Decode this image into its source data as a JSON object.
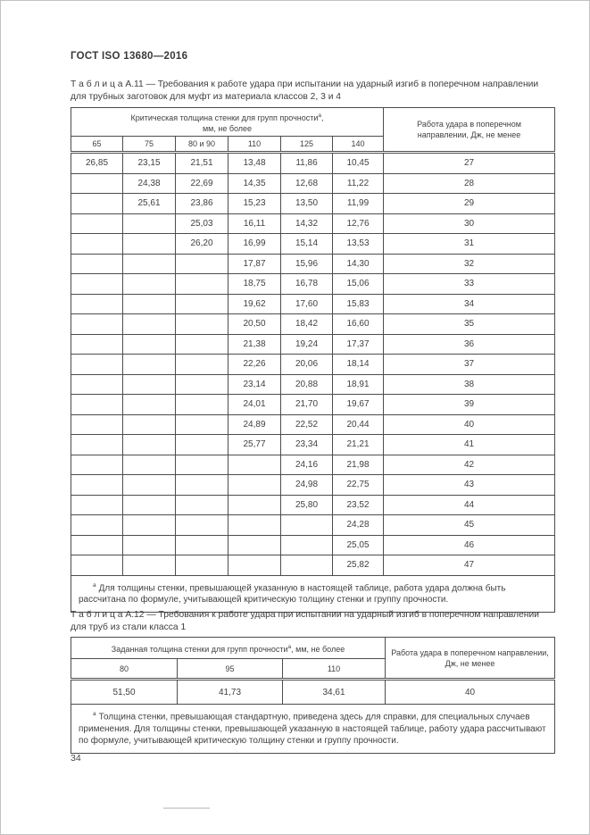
{
  "page": {
    "title": "ГОСТ ISO 13680—2016",
    "number": "34"
  },
  "table_a11": {
    "caption_label": "Т а б л и ц а  А.11",
    "caption_text": "— Требования к работе удара при испытании на ударный изгиб в поперечном направлении для трубных заготовок для муфт из материала классов 2, 3 и 4",
    "header": {
      "group_line1": "Критическая толщина стенки для групп прочности",
      "footnote_ref": "а",
      "group_line1_tail": ",",
      "group_line2": "мм, не более",
      "columns": [
        "65",
        "75",
        "80 и 90",
        "110",
        "125",
        "140"
      ],
      "work_column": "Работа удара в поперечном направлении, Дж, не менее"
    },
    "rows": [
      [
        "26,85",
        "23,15",
        "21,51",
        "13,48",
        "11,86",
        "10,45",
        "27"
      ],
      [
        "",
        "24,38",
        "22,69",
        "14,35",
        "12,68",
        "11,22",
        "28"
      ],
      [
        "",
        "25,61",
        "23,86",
        "15,23",
        "13,50",
        "11,99",
        "29"
      ],
      [
        "",
        "",
        "25,03",
        "16,11",
        "14,32",
        "12,76",
        "30"
      ],
      [
        "",
        "",
        "26,20",
        "16,99",
        "15,14",
        "13,53",
        "31"
      ],
      [
        "",
        "",
        "",
        "17,87",
        "15,96",
        "14,30",
        "32"
      ],
      [
        "",
        "",
        "",
        "18,75",
        "16,78",
        "15,06",
        "33"
      ],
      [
        "",
        "",
        "",
        "19,62",
        "17,60",
        "15,83",
        "34"
      ],
      [
        "",
        "",
        "",
        "20,50",
        "18,42",
        "16,60",
        "35"
      ],
      [
        "",
        "",
        "",
        "21,38",
        "19,24",
        "17,37",
        "36"
      ],
      [
        "",
        "",
        "",
        "22,26",
        "20,06",
        "18,14",
        "37"
      ],
      [
        "",
        "",
        "",
        "23,14",
        "20,88",
        "18,91",
        "38"
      ],
      [
        "",
        "",
        "",
        "24,01",
        "21,70",
        "19,67",
        "39"
      ],
      [
        "",
        "",
        "",
        "24,89",
        "22,52",
        "20,44",
        "40"
      ],
      [
        "",
        "",
        "",
        "25,77",
        "23,34",
        "21,21",
        "41"
      ],
      [
        "",
        "",
        "",
        "",
        "24,16",
        "21,98",
        "42"
      ],
      [
        "",
        "",
        "",
        "",
        "24,98",
        "22,75",
        "43"
      ],
      [
        "",
        "",
        "",
        "",
        "25,80",
        "23,52",
        "44"
      ],
      [
        "",
        "",
        "",
        "",
        "",
        "24,28",
        "45"
      ],
      [
        "",
        "",
        "",
        "",
        "",
        "25,05",
        "46"
      ],
      [
        "",
        "",
        "",
        "",
        "",
        "25,82",
        "47"
      ]
    ],
    "footnote_ref": "а",
    "footnote_text": "Для толщины стенки, превышающей указанную в настоящей таблице, работа удара должна быть рассчитана по формуле, учитывающей критическую толщину стенки и группу прочности."
  },
  "table_a12": {
    "caption_label": "Т а б л и ц а  А.12",
    "caption_text": "— Требования к работе удара при испытании на ударный изгиб в поперечном направлении для труб из стали класса 1",
    "header": {
      "group_line1": "Заданная толщина стенки для групп прочности",
      "footnote_ref": "а",
      "group_line1_tail": ", мм, не более",
      "columns": [
        "80",
        "95",
        "110"
      ],
      "work_column": "Работа удара в поперечном направлении, Дж, не менее"
    },
    "rows": [
      [
        "51,50",
        "41,73",
        "34,61",
        "40"
      ]
    ],
    "footnote_ref": "а",
    "footnote_text": "Толщина стенки, превышающая стандартную, приведена здесь для справки, для специальных случаев применения. Для толщины стенки, превышающей указанную в настоящей таблице, работу удара рассчитывают по формуле, учитывающей критическую толщину стенки и группу прочности."
  }
}
